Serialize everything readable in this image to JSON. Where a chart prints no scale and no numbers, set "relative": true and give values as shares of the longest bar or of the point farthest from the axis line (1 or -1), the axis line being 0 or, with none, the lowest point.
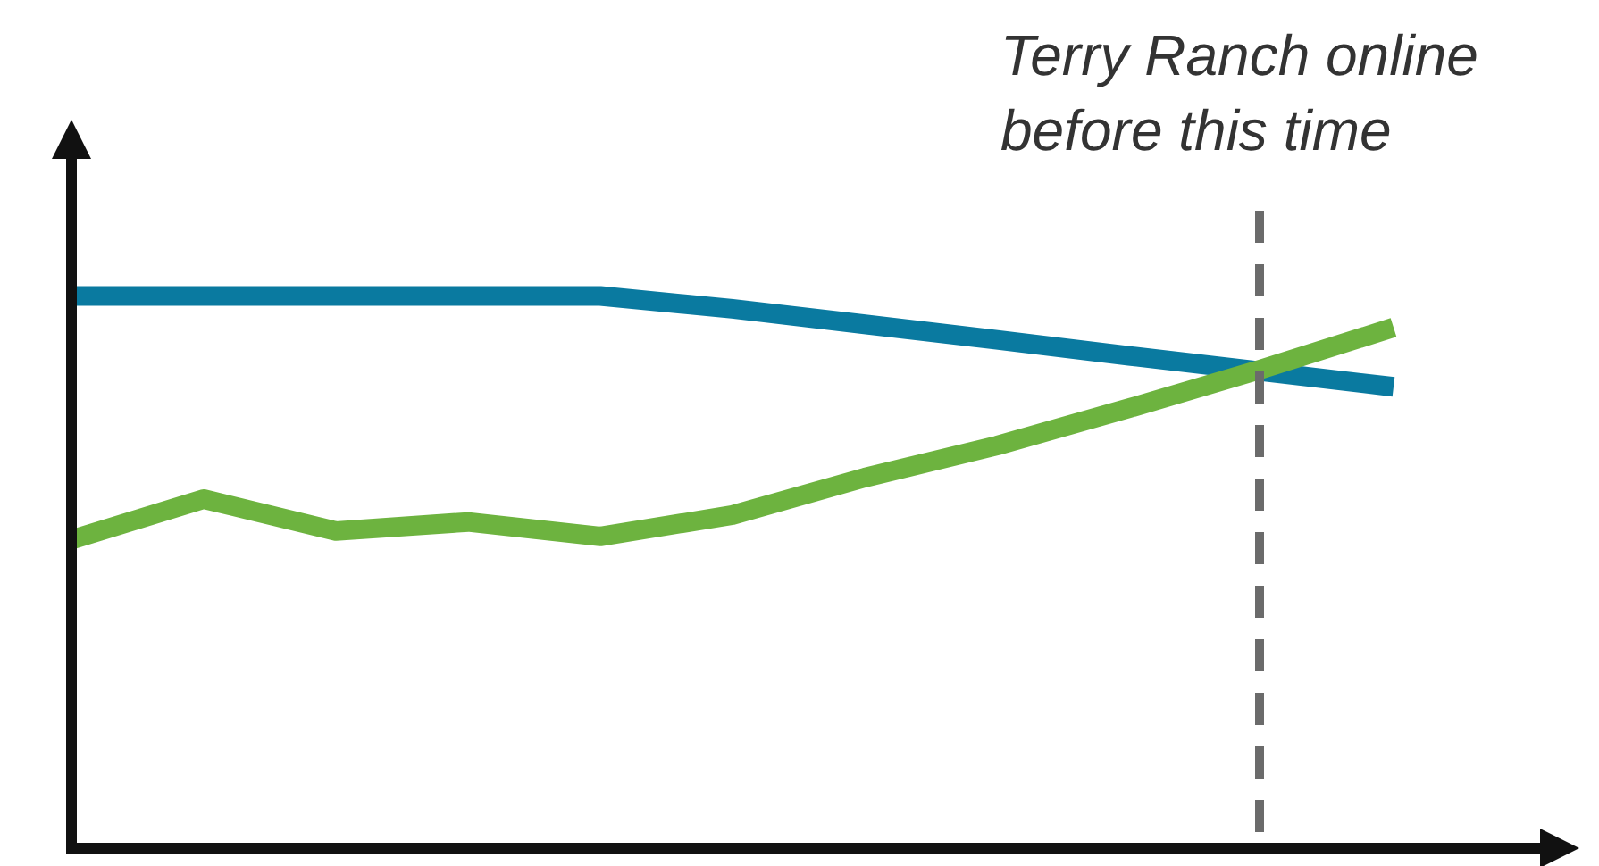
{
  "chart_data": {
    "type": "line",
    "relative": true,
    "line_style": "solid",
    "categories": [
      null,
      null,
      null,
      null,
      null,
      null,
      null,
      null,
      null,
      null,
      null
    ],
    "series": [
      {
        "color": "#0a7aa0",
        "values": [
          1,
          1,
          1,
          1,
          1,
          0.976,
          0.947,
          0.918,
          0.888,
          0.859,
          0.83
        ]
      },
      {
        "color": "#6db33f",
        "values": [
          0.544,
          0.62,
          0.56,
          0.577,
          0.55,
          0.59,
          0.66,
          0.72,
          0.79,
          0.863,
          0.941
        ]
      }
    ],
    "annotations": [
      "Terry Ranch online before this time"
    ]
  }
}
